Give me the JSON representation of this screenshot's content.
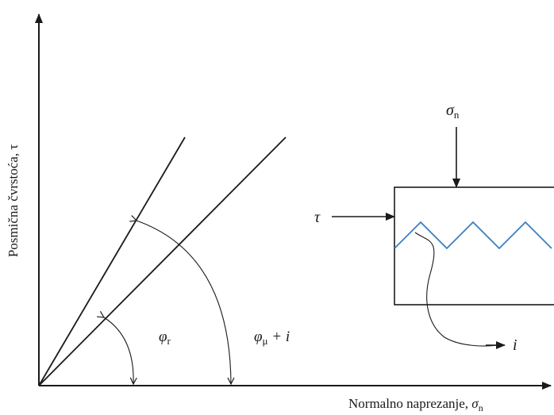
{
  "axes": {
    "y_label": "Posmična čvrstoća, τ",
    "x_label_text": "Normalno naprezanje, ",
    "x_label_symbol": "σ",
    "x_label_subscript": "n"
  },
  "angles": {
    "phi_r": {
      "symbol": "φ",
      "subscript": "r"
    },
    "phi_mu_i": {
      "symbol": "φ",
      "subscript": "μ",
      "suffix": " + i"
    }
  },
  "specimen": {
    "normal_load_symbol": "σ",
    "normal_load_subscript": "n",
    "shear_load_label": "τ",
    "asperity_label": "i"
  },
  "colors": {
    "lines": "#1a1a1a",
    "joint_profile": "#3a7fc0"
  }
}
